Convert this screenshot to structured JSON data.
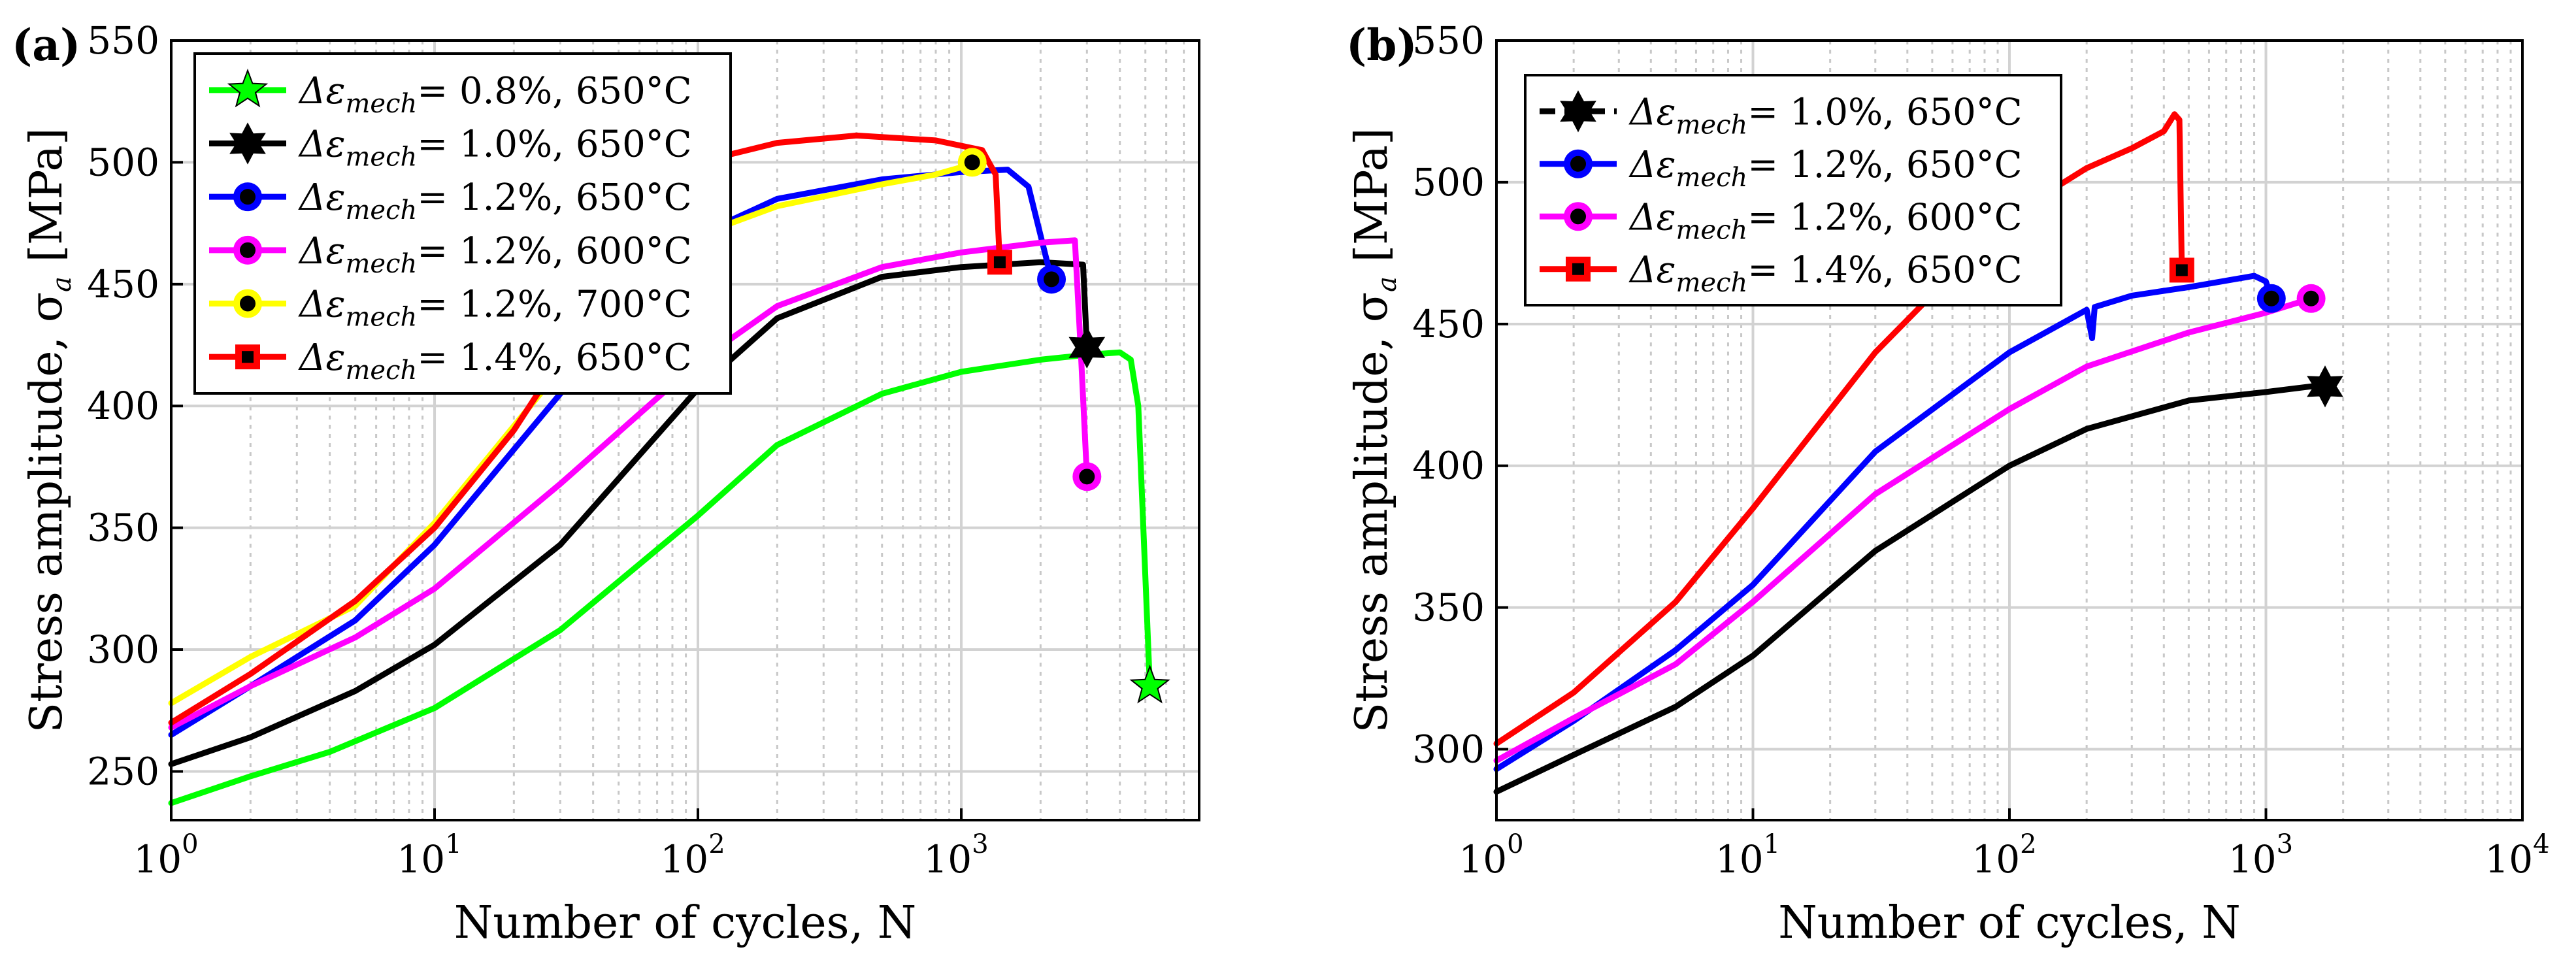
{
  "chart_data": [
    {
      "panel_label": "(a)",
      "type": "line",
      "xscale": "log",
      "xlim": [
        1,
        8000
      ],
      "ylim": [
        230,
        550
      ],
      "xlabel": "Number of cycles, N",
      "ylabel": "Stress amplitude, σ",
      "ylabel_sub": "a",
      "ylabel_unit": " [MPa]",
      "grid": "on",
      "legend_position": "top-left",
      "x_ticks": [
        1,
        10,
        100,
        1000
      ],
      "x_tick_base": "10",
      "x_tick_exps": [
        "0",
        "1",
        "2",
        "3"
      ],
      "y_ticks": [
        "250",
        "300",
        "350",
        "400",
        "450",
        "500",
        "550"
      ],
      "series": [
        {
          "name": "Δε",
          "sub": "mech",
          "label": "= 0.8%, 650°C",
          "color": "#00ff00",
          "marker": "pentagram",
          "x": [
            1,
            2,
            4,
            10,
            30,
            100,
            200,
            500,
            1000,
            2000,
            3000,
            4000,
            4400,
            4700,
            5000,
            5200
          ],
          "y": [
            237,
            248,
            258,
            276,
            308,
            355,
            384,
            405,
            414,
            419,
            421,
            422,
            419,
            400,
            330,
            285
          ]
        },
        {
          "name": "Δε",
          "sub": "mech",
          "label": "= 1.0%, 650°C",
          "color": "#000000",
          "marker": "hexagram",
          "x": [
            1,
            2,
            5,
            10,
            30,
            100,
            200,
            500,
            1000,
            2000,
            2900,
            3000
          ],
          "y": [
            253,
            264,
            283,
            302,
            343,
            407,
            436,
            453,
            457,
            459,
            458,
            424
          ]
        },
        {
          "name": "Δε",
          "sub": "mech",
          "label": "= 1.2%, 650°C",
          "color": "#0000ff",
          "marker": "circle",
          "x": [
            1,
            2,
            5,
            10,
            30,
            100,
            200,
            500,
            1000,
            1500,
            1800,
            2000,
            2200
          ],
          "y": [
            265,
            285,
            312,
            343,
            405,
            470,
            485,
            493,
            496,
            497,
            490,
            470,
            452
          ]
        },
        {
          "name": "Δε",
          "sub": "mech",
          "label": "= 1.2%, 600°C",
          "color": "#ff00ff",
          "marker": "circle",
          "x": [
            1,
            2,
            5,
            10,
            30,
            100,
            200,
            500,
            1000,
            2000,
            2700,
            2850,
            3000
          ],
          "y": [
            268,
            285,
            305,
            325,
            368,
            418,
            441,
            457,
            463,
            467,
            468,
            420,
            371
          ]
        },
        {
          "name": "Δε",
          "sub": "mech",
          "label": "= 1.2%, 700°C",
          "color": "#ffff00",
          "marker": "circle",
          "x": [
            1,
            2,
            5,
            10,
            30,
            100,
            200,
            500,
            800,
            1000,
            1100
          ],
          "y": [
            278,
            297,
            318,
            352,
            415,
            470,
            482,
            491,
            495,
            498,
            500
          ]
        },
        {
          "name": "Δε",
          "sub": "mech",
          "label": "= 1.4%, 650°C",
          "color": "#ff0000",
          "marker": "square",
          "x": [
            1,
            2,
            5,
            10,
            20,
            40,
            100,
            200,
            400,
            800,
            1200,
            1350,
            1400
          ],
          "y": [
            270,
            290,
            320,
            350,
            390,
            440,
            500,
            508,
            511,
            509,
            505,
            495,
            459
          ]
        }
      ]
    },
    {
      "panel_label": "(b)",
      "type": "line",
      "xscale": "log",
      "xlim": [
        1,
        10000
      ],
      "ylim": [
        275,
        550
      ],
      "xlabel": "Number of cycles, N",
      "ylabel": "Stress amplitude, σ",
      "ylabel_sub": "a",
      "ylabel_unit": " [MPa]",
      "grid": "on",
      "legend_position": "top-left",
      "x_ticks": [
        1,
        10,
        100,
        1000,
        10000
      ],
      "x_tick_base": "10",
      "x_tick_exps": [
        "0",
        "1",
        "2",
        "3",
        "4"
      ],
      "y_ticks": [
        "300",
        "350",
        "400",
        "450",
        "500",
        "550"
      ],
      "series": [
        {
          "name": "Δε",
          "sub": "mech",
          "label": "= 1.0%, 650°C",
          "color": "#000000",
          "marker": "hexagram",
          "dashed": true,
          "x": [
            1,
            2,
            5,
            10,
            30,
            100,
            200,
            500,
            1000,
            1500,
            1700
          ],
          "y": [
            285,
            298,
            315,
            333,
            370,
            400,
            413,
            423,
            426,
            428,
            428
          ]
        },
        {
          "name": "Δε",
          "sub": "mech",
          "label": "= 1.2%, 650°C",
          "color": "#0000ff",
          "marker": "circle",
          "x": [
            1,
            2,
            5,
            10,
            30,
            100,
            200,
            210,
            215,
            300,
            500,
            900,
            1000,
            1050
          ],
          "y": [
            293,
            310,
            335,
            358,
            405,
            440,
            455,
            445,
            456,
            460,
            463,
            467,
            465,
            459
          ]
        },
        {
          "name": "Δε",
          "sub": "mech",
          "label": "= 1.2%, 600°C",
          "color": "#ff00ff",
          "marker": "circle",
          "x": [
            1,
            2,
            5,
            10,
            30,
            100,
            200,
            500,
            1000,
            1500
          ],
          "y": [
            296,
            311,
            330,
            352,
            390,
            420,
            435,
            447,
            454,
            459
          ]
        },
        {
          "name": "Δε",
          "sub": "mech",
          "label": "= 1.4%, 650°C",
          "color": "#ff0000",
          "marker": "square",
          "x": [
            1,
            2,
            5,
            10,
            30,
            100,
            200,
            300,
            400,
            440,
            460,
            470
          ],
          "y": [
            302,
            320,
            352,
            385,
            440,
            488,
            505,
            512,
            518,
            524,
            522,
            469
          ]
        }
      ]
    }
  ]
}
